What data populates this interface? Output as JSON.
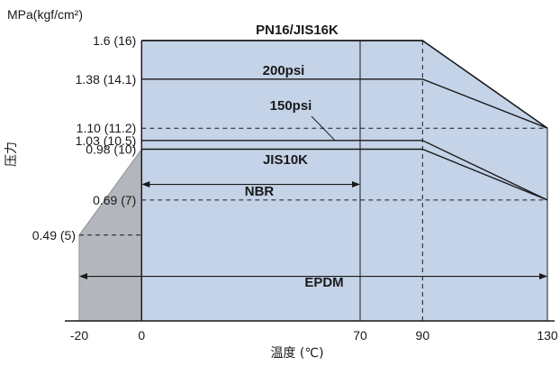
{
  "chart_data": {
    "type": "area",
    "title": "",
    "xlabel": "温度 (℃)",
    "ylabel": "压力",
    "y_unit_label": "MPa(kgf/cm²)",
    "xlim": [
      -20,
      130
    ],
    "ylim": [
      0,
      1.6
    ],
    "x_ticks": [
      {
        "value": -20,
        "label": "-20"
      },
      {
        "value": 0,
        "label": "0"
      },
      {
        "value": 70,
        "label": "70"
      },
      {
        "value": 90,
        "label": "90"
      },
      {
        "value": 130,
        "label": "130"
      }
    ],
    "y_ticks": [
      {
        "value": 1.6,
        "label": "1.6 (16)"
      },
      {
        "value": 1.38,
        "label": "1.38 (14.1)"
      },
      {
        "value": 1.1,
        "label": "1.10 (11.2)"
      },
      {
        "value": 1.03,
        "label": "1.03 (10.5)"
      },
      {
        "value": 0.98,
        "label": "0.98 (10)"
      },
      {
        "value": 0.69,
        "label": "0.69 (7)"
      },
      {
        "value": 0.49,
        "label": "0.49 (5)"
      }
    ],
    "regions": [
      {
        "name": "",
        "color": "#c5d3e8",
        "points": [
          [
            0,
            0
          ],
          [
            0,
            1.6
          ],
          [
            90,
            1.6
          ],
          [
            130,
            1.1
          ],
          [
            130,
            0
          ]
        ]
      },
      {
        "name": "",
        "color": "#b3b7bd",
        "points": [
          [
            -20,
            0
          ],
          [
            -20,
            0.49
          ],
          [
            0,
            0.98
          ],
          [
            0,
            0
          ]
        ]
      }
    ],
    "series": [
      {
        "name": "PN16/JIS16K",
        "x": [
          0,
          90,
          130
        ],
        "y": [
          1.6,
          1.6,
          1.1
        ]
      },
      {
        "name": "200psi",
        "x": [
          0,
          90,
          130
        ],
        "y": [
          1.38,
          1.38,
          1.1
        ]
      },
      {
        "name": "150psi",
        "x": [
          0,
          90,
          130
        ],
        "y": [
          1.03,
          1.03,
          0.69
        ]
      },
      {
        "name": "JIS10K",
        "x": [
          0,
          90,
          130
        ],
        "y": [
          0.98,
          0.98,
          0.69
        ]
      }
    ],
    "ranges": [
      {
        "name": "NBR",
        "from": 0,
        "to": 70
      },
      {
        "name": "EPDM",
        "from": -20,
        "to": 130
      }
    ],
    "annotations": [
      "PN16/JIS16K",
      "200psi",
      "150psi",
      "JIS10K",
      "NBR",
      "EPDM"
    ],
    "colors": {
      "chart_bg": "#c5d3e8",
      "low_temp_region": "#b3b7bd",
      "line": "#1a1a1a"
    },
    "grid": false
  }
}
